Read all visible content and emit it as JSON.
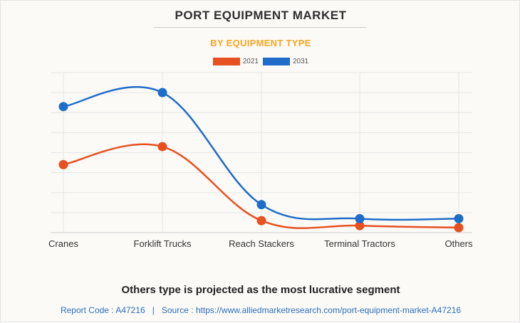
{
  "chart_data": {
    "type": "line",
    "title": "PORT EQUIPMENT MARKET",
    "subtitle": "BY EQUIPMENT TYPE",
    "categories": [
      "Cranes",
      "Forklift Trucks",
      "Reach Stackers",
      "Terminal Tractors",
      "Others"
    ],
    "series": [
      {
        "name": "2021",
        "color": "#e8501f",
        "values": [
          3.4,
          4.3,
          0.6,
          0.35,
          0.25
        ]
      },
      {
        "name": "2031",
        "color": "#1f6cc9",
        "values": [
          6.3,
          7.0,
          1.4,
          0.7,
          0.7
        ]
      }
    ],
    "ylim": [
      0,
      8
    ],
    "grid": true,
    "legend_position": "top-center",
    "xlabel": "",
    "ylabel": ""
  },
  "footer": {
    "headline": "Others type is projected as the most lucrative segment",
    "report_code": "Report Code : A47216",
    "separator": "|",
    "source": "Source : https://www.alliedmarketresearch.com/port-equipment-market-A47216"
  }
}
